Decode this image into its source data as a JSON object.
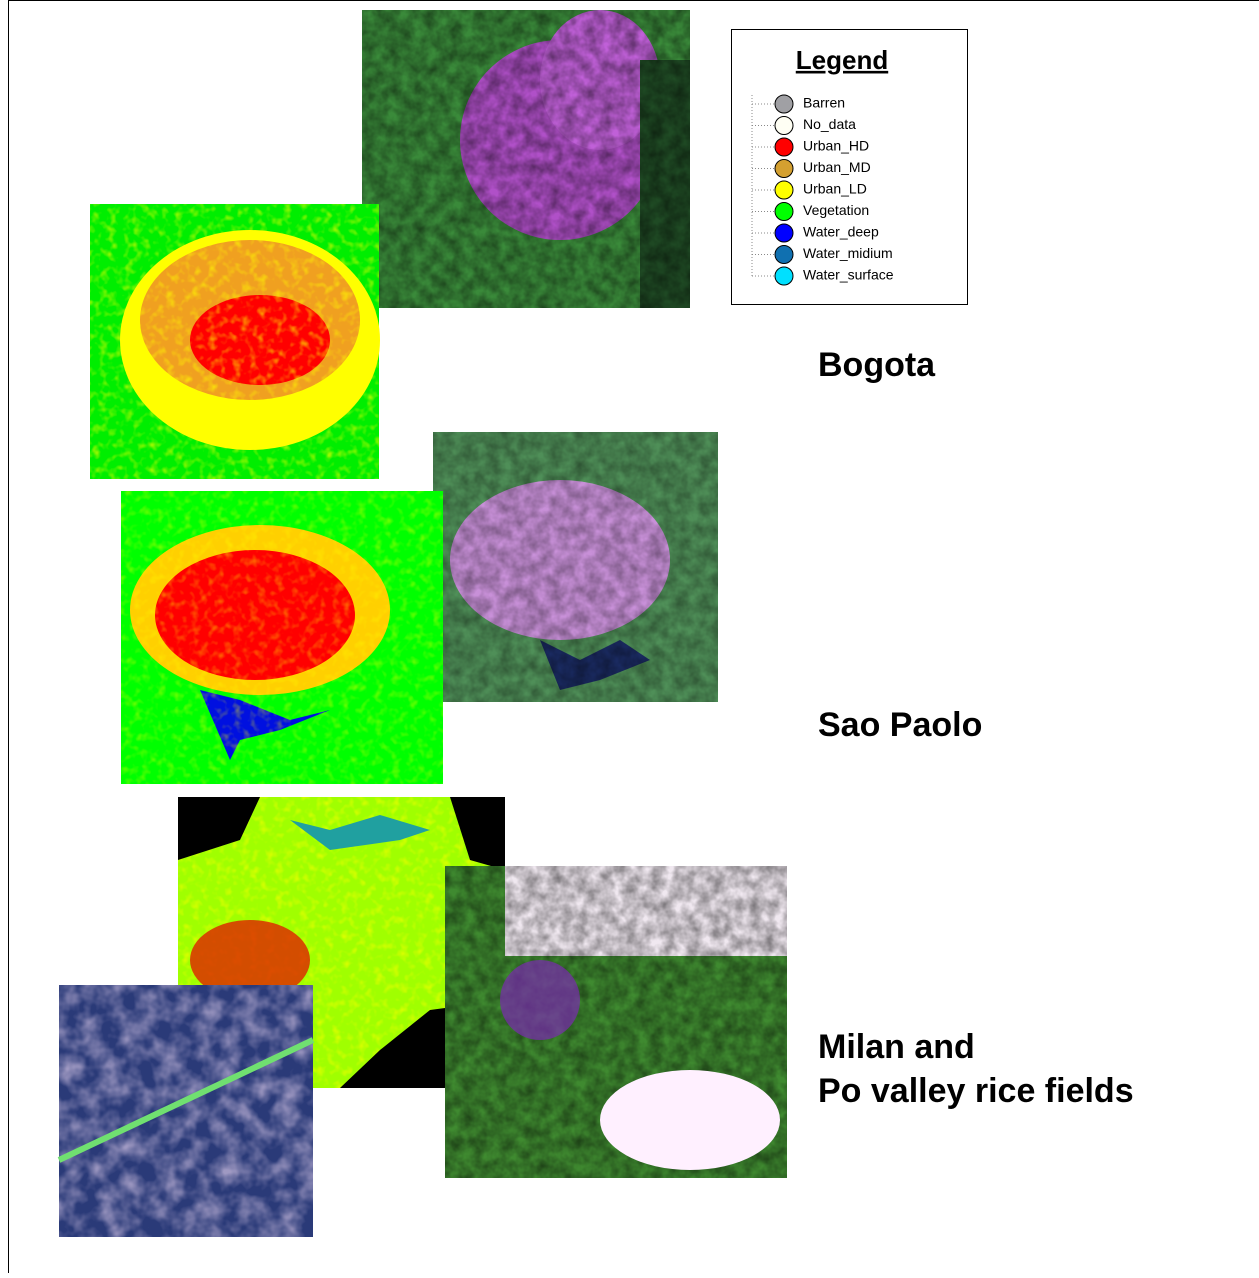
{
  "legend": {
    "title": "Legend",
    "items": [
      {
        "label": "Barren",
        "color": "#a0a0a4"
      },
      {
        "label": "No_data",
        "color": "#fffff4"
      },
      {
        "label": "Urban_HD",
        "color": "#ff0000"
      },
      {
        "label": "Urban_MD",
        "color": "#d4a030"
      },
      {
        "label": "Urban_LD",
        "color": "#ffff00"
      },
      {
        "label": "Vegetation",
        "color": "#00ff00"
      },
      {
        "label": "Water_deep",
        "color": "#0000ff"
      },
      {
        "label": "Water_midium",
        "color": "#1070b0"
      },
      {
        "label": "Water_surface",
        "color": "#00e0ff"
      }
    ]
  },
  "labels": {
    "bogota": "Bogota",
    "sao_paolo": "Sao Paolo",
    "milan": [
      "Milan and",
      "Po valley rice fields"
    ]
  }
}
